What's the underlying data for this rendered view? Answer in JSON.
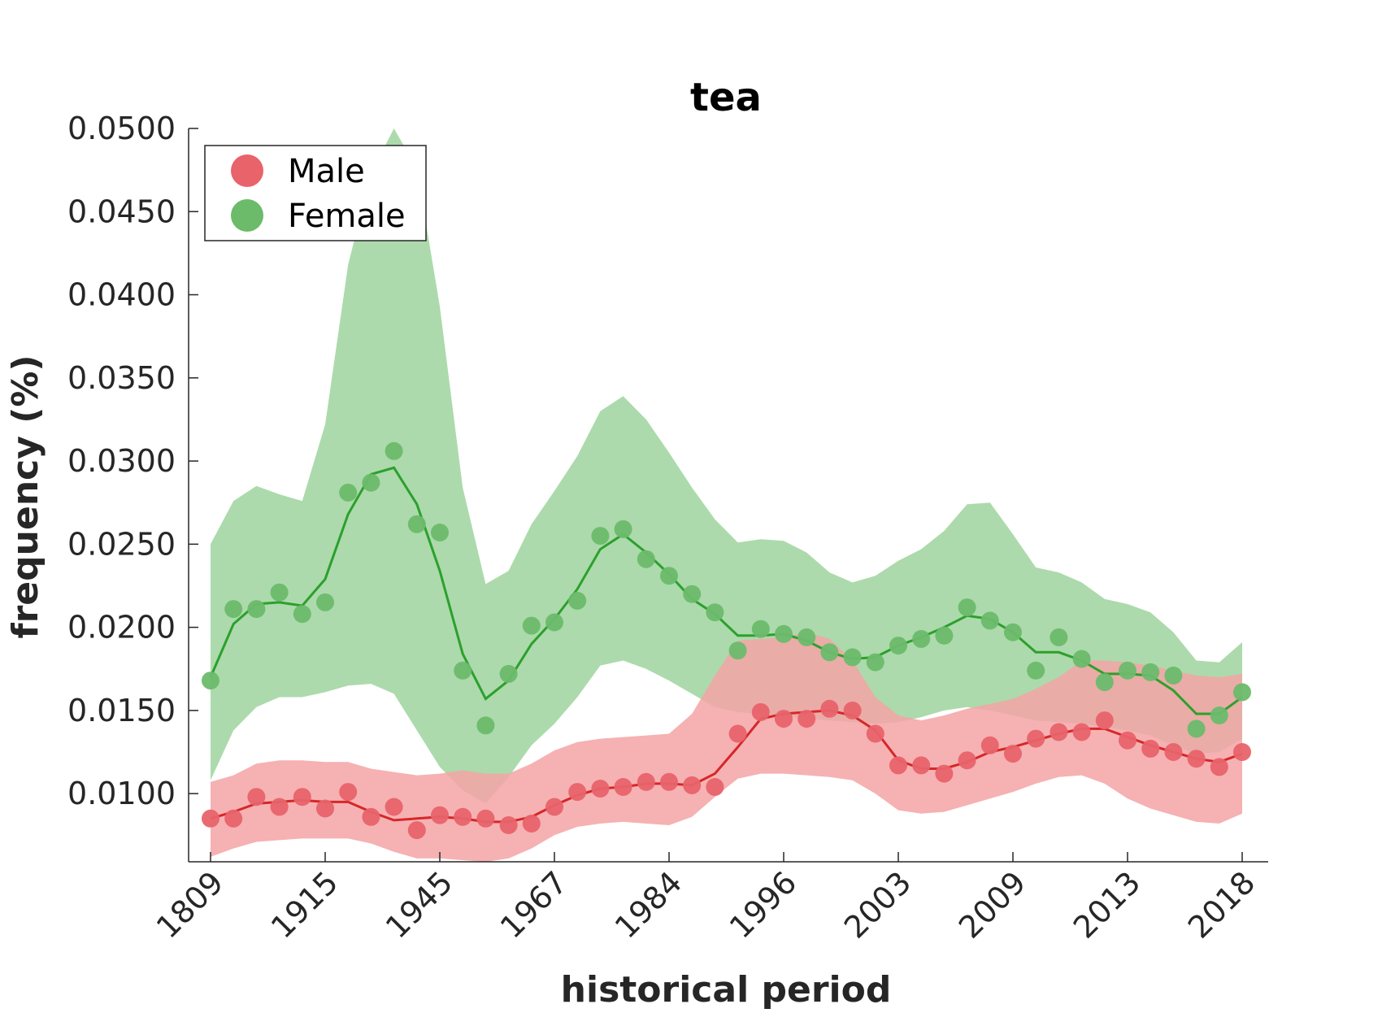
{
  "chart_data": {
    "type": "line",
    "title": "tea",
    "xlabel": "historical period",
    "ylabel": "frequency (%)",
    "ylim": [
      0.0059,
      0.05
    ],
    "y_ticks": [
      "0.0100",
      "0.0150",
      "0.0200",
      "0.0250",
      "0.0300",
      "0.0350",
      "0.0400",
      "0.0450",
      "0.0500"
    ],
    "y_tick_values": [
      0.01,
      0.015,
      0.02,
      0.025,
      0.03,
      0.035,
      0.04,
      0.045,
      0.05
    ],
    "x_tick_labels": [
      "1809",
      "1915",
      "1945",
      "1967",
      "1984",
      "1996",
      "2003",
      "2009",
      "2013",
      "2018"
    ],
    "x_tick_indices": [
      0,
      5,
      10,
      15,
      20,
      25,
      30,
      35,
      40,
      45
    ],
    "n_points": 46,
    "legend": {
      "placement": "top-left",
      "entries": [
        "Male",
        "Female"
      ]
    },
    "grid": false,
    "series": [
      {
        "name": "Male",
        "color": "#e8636a",
        "line_color": "#d62728",
        "band_color": "#f4a3a6",
        "points": [
          0.0085,
          0.0085,
          0.0098,
          0.0092,
          0.0098,
          0.0091,
          0.0101,
          0.0086,
          0.0092,
          0.0078,
          0.0087,
          0.0086,
          0.0085,
          0.0081,
          0.0082,
          0.0092,
          0.0101,
          0.0103,
          0.0104,
          0.0107,
          0.0107,
          0.0105,
          0.0104,
          0.0136,
          0.0149,
          0.0145,
          0.0145,
          0.0151,
          0.015,
          0.0136,
          0.0117,
          0.0117,
          0.0112,
          0.012,
          0.0129,
          0.0124,
          0.0133,
          0.0137,
          0.0137,
          0.0144,
          0.0132,
          0.0127,
          0.0125,
          0.0121,
          0.0116,
          0.0125
        ],
        "smooth": [
          0.0085,
          0.0089,
          0.0094,
          0.0095,
          0.0096,
          0.0095,
          0.0095,
          0.0089,
          0.0084,
          0.0085,
          0.0086,
          0.0085,
          0.0083,
          0.0083,
          0.0086,
          0.0093,
          0.0099,
          0.0103,
          0.0104,
          0.0106,
          0.0106,
          0.0105,
          0.0112,
          0.0128,
          0.0145,
          0.0148,
          0.0149,
          0.015,
          0.0147,
          0.0138,
          0.012,
          0.0115,
          0.0115,
          0.0119,
          0.0125,
          0.0128,
          0.0132,
          0.0136,
          0.0139,
          0.0139,
          0.0134,
          0.0129,
          0.0125,
          0.0121,
          0.0119,
          0.0124
        ],
        "lower": [
          0.0062,
          0.0067,
          0.0071,
          0.0072,
          0.0073,
          0.0073,
          0.0073,
          0.007,
          0.0065,
          0.0061,
          0.0061,
          0.006,
          0.0059,
          0.0061,
          0.0067,
          0.0075,
          0.008,
          0.0082,
          0.0083,
          0.0082,
          0.0081,
          0.0086,
          0.0098,
          0.0109,
          0.0112,
          0.0112,
          0.0111,
          0.011,
          0.0108,
          0.01,
          0.009,
          0.0088,
          0.0089,
          0.0093,
          0.0097,
          0.0101,
          0.0106,
          0.011,
          0.0111,
          0.0106,
          0.0097,
          0.0091,
          0.0087,
          0.0083,
          0.0082,
          0.0088
        ],
        "upper": [
          0.0107,
          0.0111,
          0.0118,
          0.012,
          0.012,
          0.0119,
          0.0119,
          0.0115,
          0.0113,
          0.0111,
          0.0112,
          0.0114,
          0.0112,
          0.0112,
          0.0118,
          0.0126,
          0.0131,
          0.0133,
          0.0134,
          0.0135,
          0.0136,
          0.0148,
          0.0171,
          0.0192,
          0.0193,
          0.0194,
          0.0197,
          0.0193,
          0.018,
          0.0158,
          0.0147,
          0.0144,
          0.0147,
          0.0151,
          0.0154,
          0.0157,
          0.0163,
          0.017,
          0.018,
          0.018,
          0.0179,
          0.0177,
          0.0174,
          0.0171,
          0.017,
          0.0172
        ]
      },
      {
        "name": "Female",
        "color": "#6bbb6b",
        "line_color": "#2ca02c",
        "band_color": "#a8d8a8",
        "points": [
          0.0168,
          0.0211,
          0.0211,
          0.0221,
          0.0208,
          0.0215,
          0.0281,
          0.0287,
          0.0306,
          0.0262,
          0.0257,
          0.0174,
          0.0141,
          0.0172,
          0.0201,
          0.0203,
          0.0216,
          0.0255,
          0.0259,
          0.0241,
          0.0231,
          0.022,
          0.0209,
          0.0186,
          0.0199,
          0.0196,
          0.0194,
          0.0185,
          0.0182,
          0.0179,
          0.0189,
          0.0193,
          0.0195,
          0.0212,
          0.0204,
          0.0197,
          0.0174,
          0.0194,
          0.0181,
          0.0167,
          0.0174,
          0.0173,
          0.0171,
          0.0139,
          0.0147,
          0.0161
        ],
        "smooth": [
          0.017,
          0.0202,
          0.0214,
          0.0215,
          0.0213,
          0.0229,
          0.0268,
          0.0292,
          0.0296,
          0.0274,
          0.0234,
          0.0184,
          0.0157,
          0.0168,
          0.019,
          0.0205,
          0.0223,
          0.0247,
          0.0256,
          0.0245,
          0.0232,
          0.0217,
          0.0208,
          0.0195,
          0.0195,
          0.0196,
          0.0192,
          0.0185,
          0.0181,
          0.0182,
          0.0189,
          0.0194,
          0.02,
          0.0207,
          0.0205,
          0.0197,
          0.0185,
          0.0185,
          0.018,
          0.0172,
          0.0172,
          0.0171,
          0.0162,
          0.0148,
          0.0148,
          0.0158
        ],
        "lower": [
          0.0108,
          0.0138,
          0.0152,
          0.0158,
          0.0158,
          0.0161,
          0.0165,
          0.0166,
          0.016,
          0.0138,
          0.0116,
          0.0102,
          0.0094,
          0.011,
          0.0129,
          0.0142,
          0.0158,
          0.0177,
          0.018,
          0.0175,
          0.0168,
          0.016,
          0.0152,
          0.0149,
          0.0148,
          0.0147,
          0.0145,
          0.0144,
          0.0143,
          0.0142,
          0.0143,
          0.0146,
          0.015,
          0.0152,
          0.015,
          0.0147,
          0.0144,
          0.0143,
          0.0142,
          0.014,
          0.0138,
          0.0135,
          0.0129,
          0.0124,
          0.0125,
          0.0133
        ],
        "upper": [
          0.025,
          0.0276,
          0.0285,
          0.028,
          0.0276,
          0.0322,
          0.0418,
          0.0473,
          0.05,
          0.0476,
          0.0393,
          0.0284,
          0.0226,
          0.0234,
          0.0262,
          0.0282,
          0.0303,
          0.033,
          0.0339,
          0.0325,
          0.0305,
          0.0284,
          0.0265,
          0.0251,
          0.0253,
          0.0252,
          0.0245,
          0.0233,
          0.0227,
          0.0231,
          0.024,
          0.0247,
          0.0258,
          0.0274,
          0.0275,
          0.0256,
          0.0236,
          0.0233,
          0.0227,
          0.0217,
          0.0214,
          0.0209,
          0.0197,
          0.018,
          0.0179,
          0.0191
        ]
      }
    ]
  }
}
